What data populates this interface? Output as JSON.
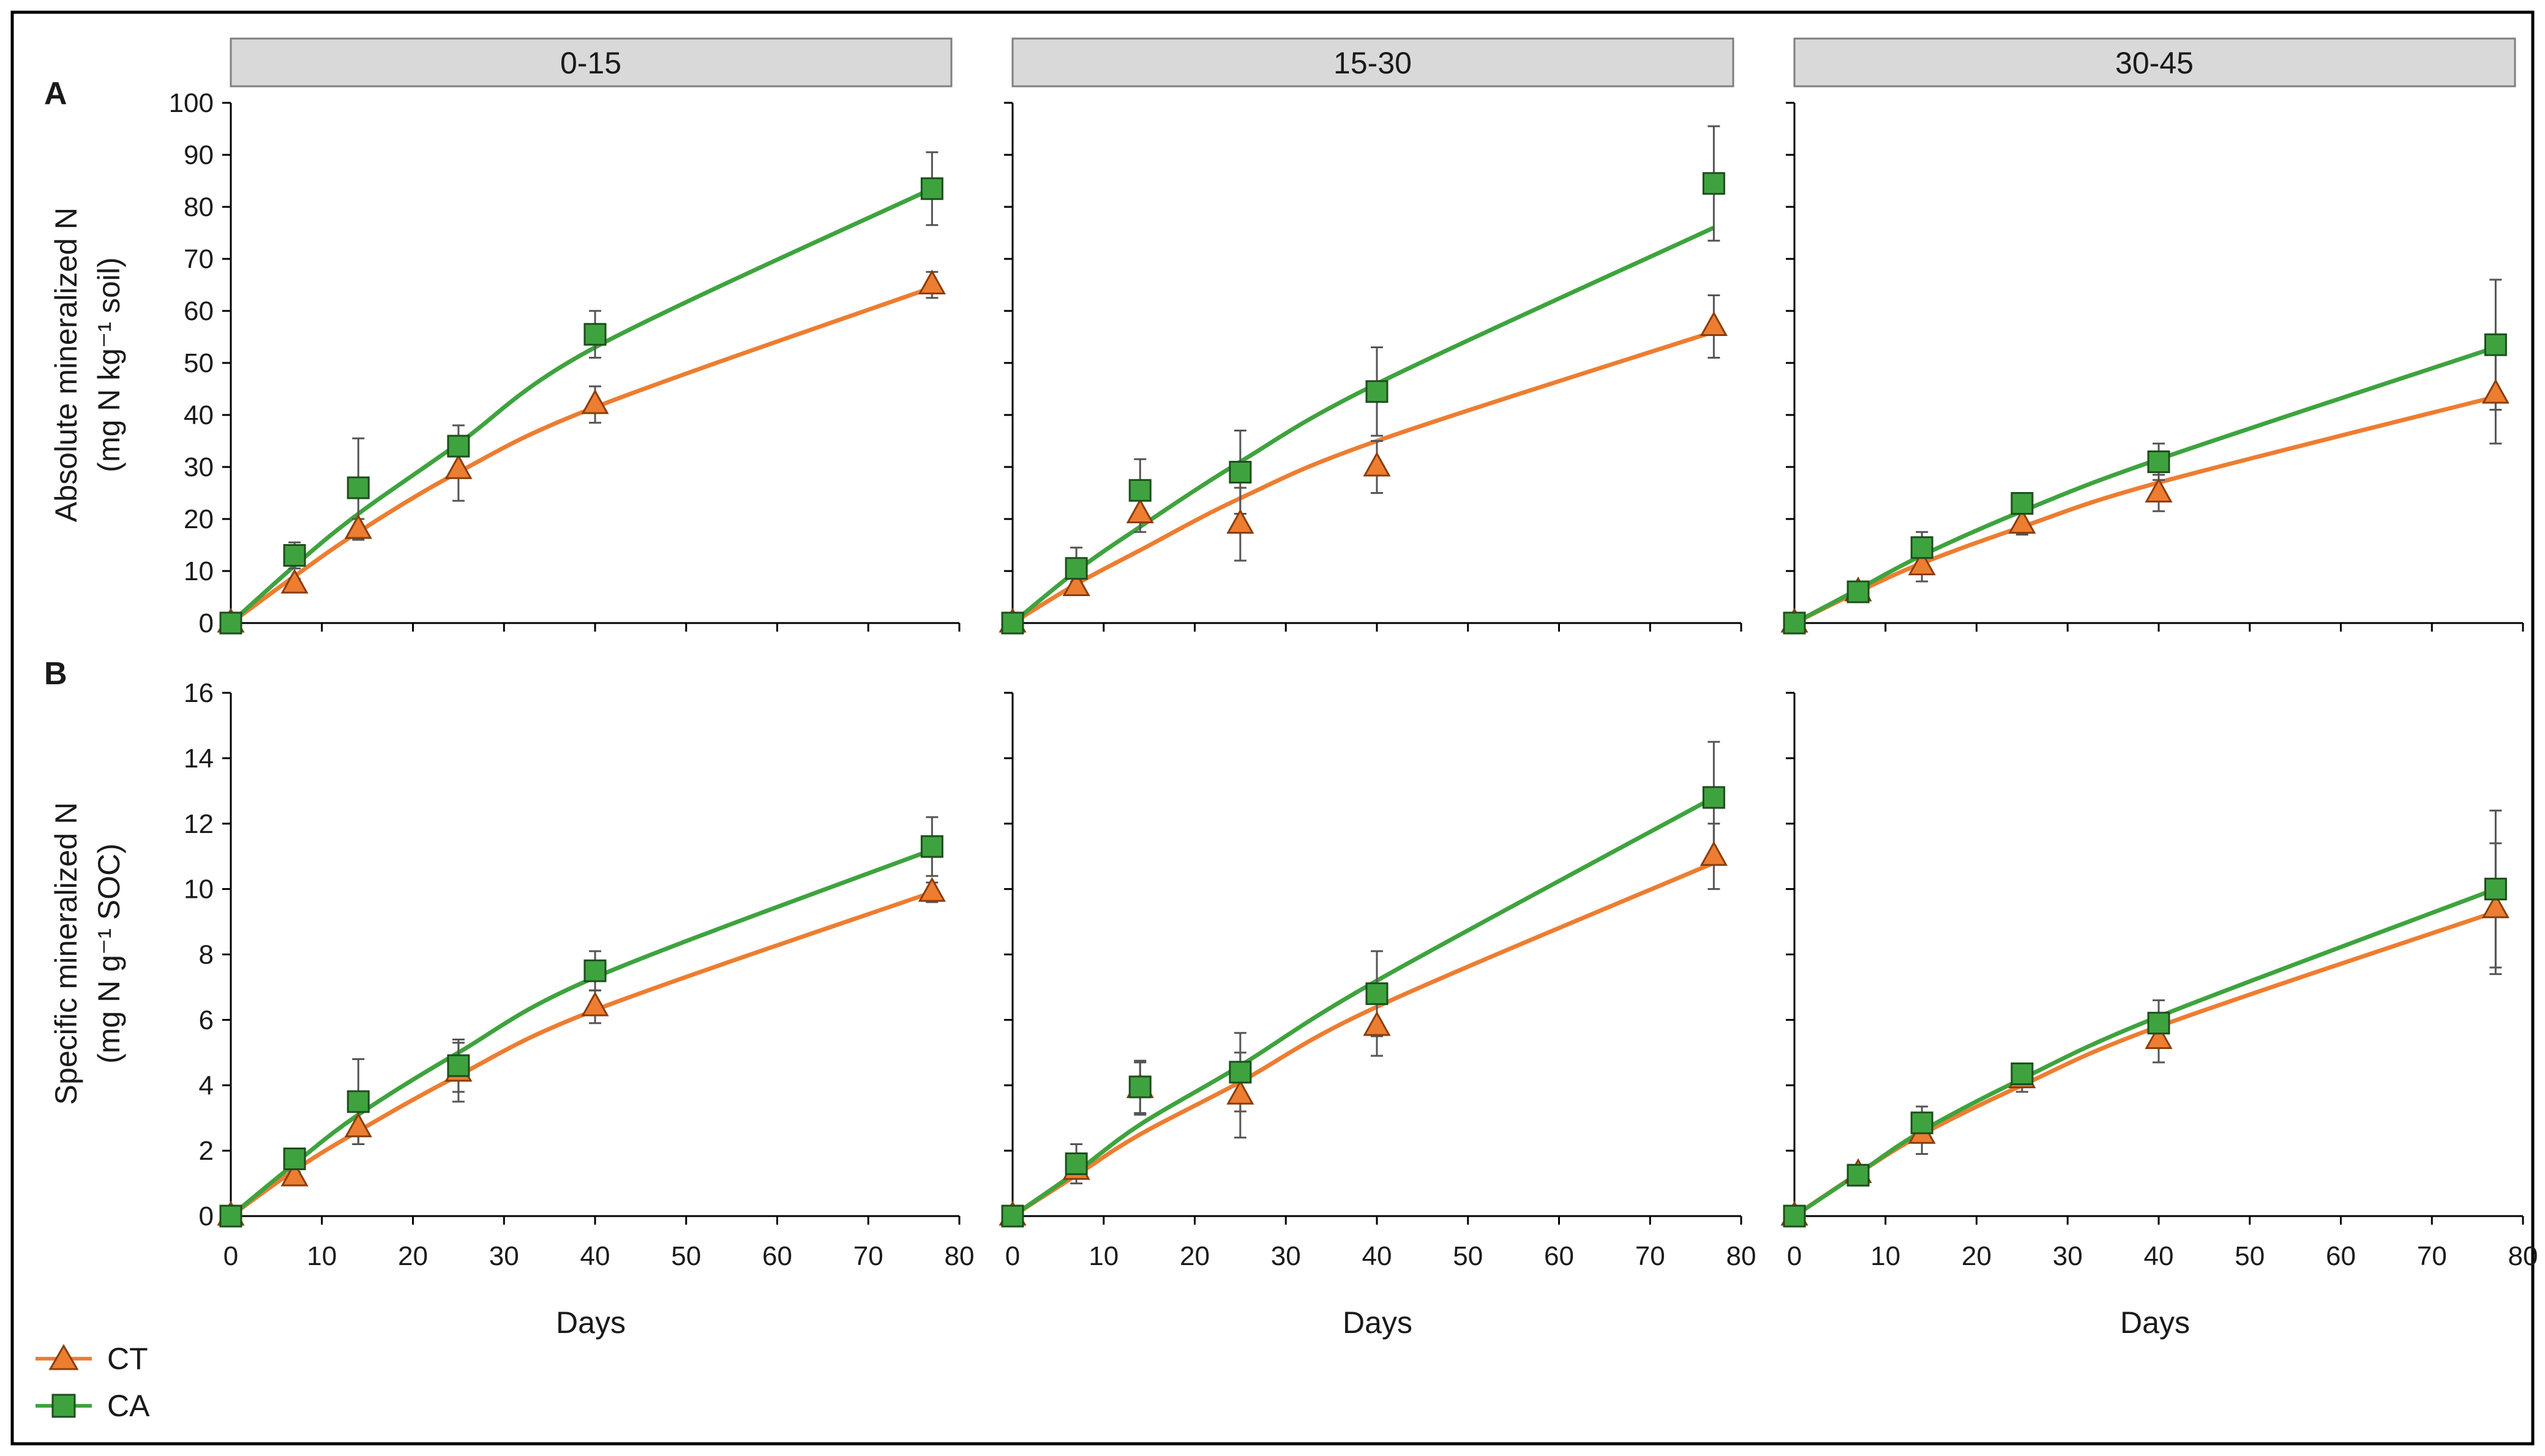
{
  "chart_data": {
    "type": "line",
    "facets": [
      "0-15",
      "15-30",
      "30-45"
    ],
    "rows": [
      {
        "panel_letter": "A",
        "ylabel_line1": "Absolute mineralized N",
        "ylabel_line2": "(mg N kg⁻¹ soil)",
        "ylim": [
          0,
          100
        ],
        "yticks": [
          0,
          10,
          20,
          30,
          40,
          50,
          60,
          70,
          80,
          90,
          100
        ]
      },
      {
        "panel_letter": "B",
        "ylabel_line1": "Specific mineralized N",
        "ylabel_line2": "(mg N g⁻¹ SOC)",
        "ylim": [
          0,
          16
        ],
        "yticks": [
          0,
          2,
          4,
          6,
          8,
          10,
          12,
          14,
          16
        ]
      }
    ],
    "xlabel": "Days",
    "xlim": [
      0,
      80
    ],
    "xticks": [
      0,
      10,
      20,
      30,
      40,
      50,
      60,
      70,
      80
    ],
    "x": [
      0,
      7,
      14,
      25,
      40,
      77
    ],
    "series": [
      {
        "name": "CT",
        "color": "#ED7D31",
        "marker": "triangle"
      },
      {
        "name": "CA",
        "color": "#3EA33E",
        "marker": "square"
      }
    ],
    "panels": [
      {
        "row": 0,
        "facet": 0,
        "CT": {
          "y": [
            0,
            7.5,
            18,
            29.5,
            42,
            65
          ],
          "err": [
            0,
            1,
            2,
            6,
            3.5,
            2.5
          ],
          "fit": [
            0,
            9,
            17.5,
            29,
            41.5,
            64.5
          ]
        },
        "CA": {
          "y": [
            0,
            13,
            26,
            34,
            55.5,
            83.5
          ],
          "err": [
            0,
            2.5,
            9.5,
            4,
            4.5,
            7
          ],
          "fit": [
            0,
            11,
            21,
            34.5,
            53,
            83.5
          ]
        }
      },
      {
        "row": 0,
        "facet": 1,
        "CT": {
          "y": [
            0,
            7,
            21,
            19,
            30,
            57
          ],
          "err": [
            0,
            1,
            3.5,
            7,
            5,
            6
          ],
          "fit": [
            0,
            7.5,
            14,
            24,
            35,
            56
          ]
        },
        "CA": {
          "y": [
            0,
            10.5,
            25.5,
            29,
            44.5,
            84.5
          ],
          "err": [
            0,
            4,
            6,
            8,
            8.5,
            11
          ],
          "fit": [
            0,
            10,
            18.5,
            31,
            46,
            76
          ]
        }
      },
      {
        "row": 0,
        "facet": 2,
        "CT": {
          "y": [
            0,
            6,
            11,
            19,
            25,
            44
          ],
          "err": [
            0,
            0.5,
            3,
            2,
            3.5,
            9.5
          ],
          "fit": [
            0,
            6,
            11.5,
            18.5,
            27,
            43.5
          ]
        },
        "CA": {
          "y": [
            0,
            6,
            14.5,
            23,
            31,
            53.5
          ],
          "err": [
            0,
            0.5,
            3,
            1.5,
            3.5,
            12.5
          ],
          "fit": [
            0,
            6.5,
            13,
            21.5,
            31.5,
            53
          ]
        }
      },
      {
        "row": 1,
        "facet": 0,
        "CT": {
          "y": [
            0,
            1.2,
            2.7,
            4.4,
            6.4,
            9.9
          ],
          "err": [
            0,
            0.15,
            0.5,
            0.9,
            0.5,
            0.3
          ],
          "fit": [
            0,
            1.4,
            2.6,
            4.3,
            6.3,
            9.9
          ]
        },
        "CA": {
          "y": [
            0,
            1.75,
            3.5,
            4.6,
            7.5,
            11.3
          ],
          "err": [
            0,
            0.25,
            1.3,
            0.8,
            0.6,
            0.9
          ],
          "fit": [
            0,
            1.6,
            3.1,
            5.0,
            7.3,
            11.2
          ]
        }
      },
      {
        "row": 1,
        "facet": 1,
        "CT": {
          "y": [
            0,
            1.4,
            3.9,
            3.7,
            5.8,
            11.0
          ],
          "err": [
            0,
            0.2,
            0.8,
            1.3,
            0.9,
            1.0
          ],
          "fit": [
            0,
            1.25,
            2.5,
            4.1,
            6.4,
            10.8
          ]
        },
        "CA": {
          "y": [
            0,
            1.6,
            3.95,
            4.4,
            6.8,
            12.8
          ],
          "err": [
            0,
            0.6,
            0.8,
            1.2,
            1.3,
            1.7
          ],
          "fit": [
            0,
            1.35,
            2.8,
            4.6,
            7.2,
            12.8
          ]
        }
      },
      {
        "row": 1,
        "facet": 2,
        "CT": {
          "y": [
            0,
            1.3,
            2.5,
            4.2,
            5.4,
            9.4
          ],
          "err": [
            0,
            0.2,
            0.6,
            0.4,
            0.7,
            2.0
          ],
          "fit": [
            0,
            1.3,
            2.5,
            4.0,
            5.8,
            9.3
          ]
        },
        "CA": {
          "y": [
            0,
            1.25,
            2.85,
            4.35,
            5.9,
            10.0
          ],
          "err": [
            0,
            0.3,
            0.5,
            0.3,
            0.7,
            2.4
          ],
          "fit": [
            0,
            1.3,
            2.6,
            4.2,
            6.1,
            10.0
          ]
        }
      }
    ]
  }
}
